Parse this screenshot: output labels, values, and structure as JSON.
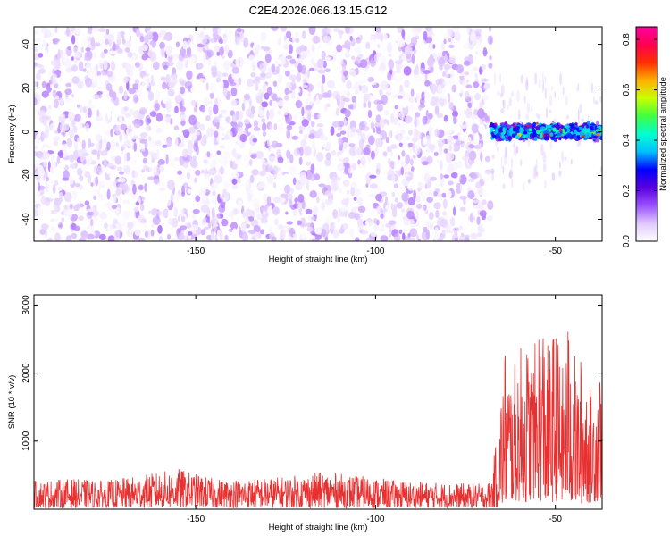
{
  "figure_title": "C2E4.2026.066.13.15.G12",
  "chart_data": [
    {
      "type": "heatmap",
      "title": "C2E4.2026.066.13.15.G12",
      "xlabel": "Height of straight line (km)",
      "ylabel": "Frequency (Hz)",
      "xlim": [
        -195,
        -37
      ],
      "ylim": [
        -50,
        48
      ],
      "xticks": [
        -150,
        -100,
        -50
      ],
      "xtick_labels": [
        "-150",
        "-100",
        "-50"
      ],
      "yticks": [
        -40,
        -20,
        0,
        20,
        40
      ],
      "ytick_labels": [
        "-40",
        "-20",
        "0",
        "20",
        "40"
      ],
      "colorbar": {
        "label": "Normalized spectral amplitude",
        "range": [
          0,
          0.85
        ],
        "ticks": [
          0,
          0.2,
          0.4,
          0.6,
          0.8
        ],
        "tick_labels": [
          "0.0",
          "0.2",
          "0.4",
          "0.6",
          "0.8"
        ],
        "colormap": [
          "#ffffff",
          "#e0c8ff",
          "#9a50ff",
          "#5a00dd",
          "#0000ff",
          "#00bfff",
          "#00ffd0",
          "#40ff40",
          "#c8ff00",
          "#ffb000",
          "#ff3000",
          "#ff0050",
          "#ff00a0"
        ]
      },
      "regions": [
        {
          "name": "noise",
          "x_range": [
            -195,
            -68
          ],
          "y_range": [
            -50,
            48
          ],
          "amplitude_range": [
            0.0,
            0.12
          ]
        },
        {
          "name": "signal",
          "x_range": [
            -68,
            -37
          ],
          "center_frequency": 0,
          "half_width": 4,
          "amplitude_range": [
            0.25,
            0.85
          ]
        }
      ],
      "grid": false
    },
    {
      "type": "line",
      "xlabel": "Height of straight line (km)",
      "ylabel": "SNR (10 * v/v)",
      "xlim": [
        -195,
        -37
      ],
      "ylim": [
        0,
        3150
      ],
      "xticks": [
        -150,
        -100,
        -50
      ],
      "xtick_labels": [
        "-150",
        "-100",
        "-50"
      ],
      "yticks": [
        1000,
        2000,
        3000
      ],
      "ytick_labels": [
        "1000",
        "2000",
        "3000"
      ],
      "series": [
        {
          "name": "SNR",
          "color": "#e83030",
          "x": [
            -195,
            -185,
            -175,
            -165,
            -155,
            -145,
            -135,
            -125,
            -115,
            -105,
            -95,
            -85,
            -75,
            -70,
            -68,
            -66,
            -64,
            -62,
            -60,
            -58,
            -56,
            -54,
            -52,
            -50,
            -48,
            -46,
            -44,
            -42,
            -40,
            -38,
            -37
          ],
          "envelope_min": [
            20,
            20,
            20,
            20,
            20,
            20,
            20,
            20,
            20,
            20,
            20,
            20,
            20,
            20,
            20,
            20,
            60,
            120,
            120,
            100,
            150,
            120,
            80,
            120,
            100,
            90,
            80,
            80,
            100,
            120,
            200
          ],
          "envelope_max": [
            420,
            450,
            420,
            500,
            600,
            450,
            450,
            480,
            550,
            500,
            430,
            400,
            380,
            380,
            420,
            1200,
            2500,
            2000,
            2400,
            2500,
            2300,
            3150,
            2400,
            2800,
            2100,
            3000,
            2000,
            2500,
            1700,
            2350,
            2050
          ]
        }
      ],
      "grid": false
    }
  ]
}
